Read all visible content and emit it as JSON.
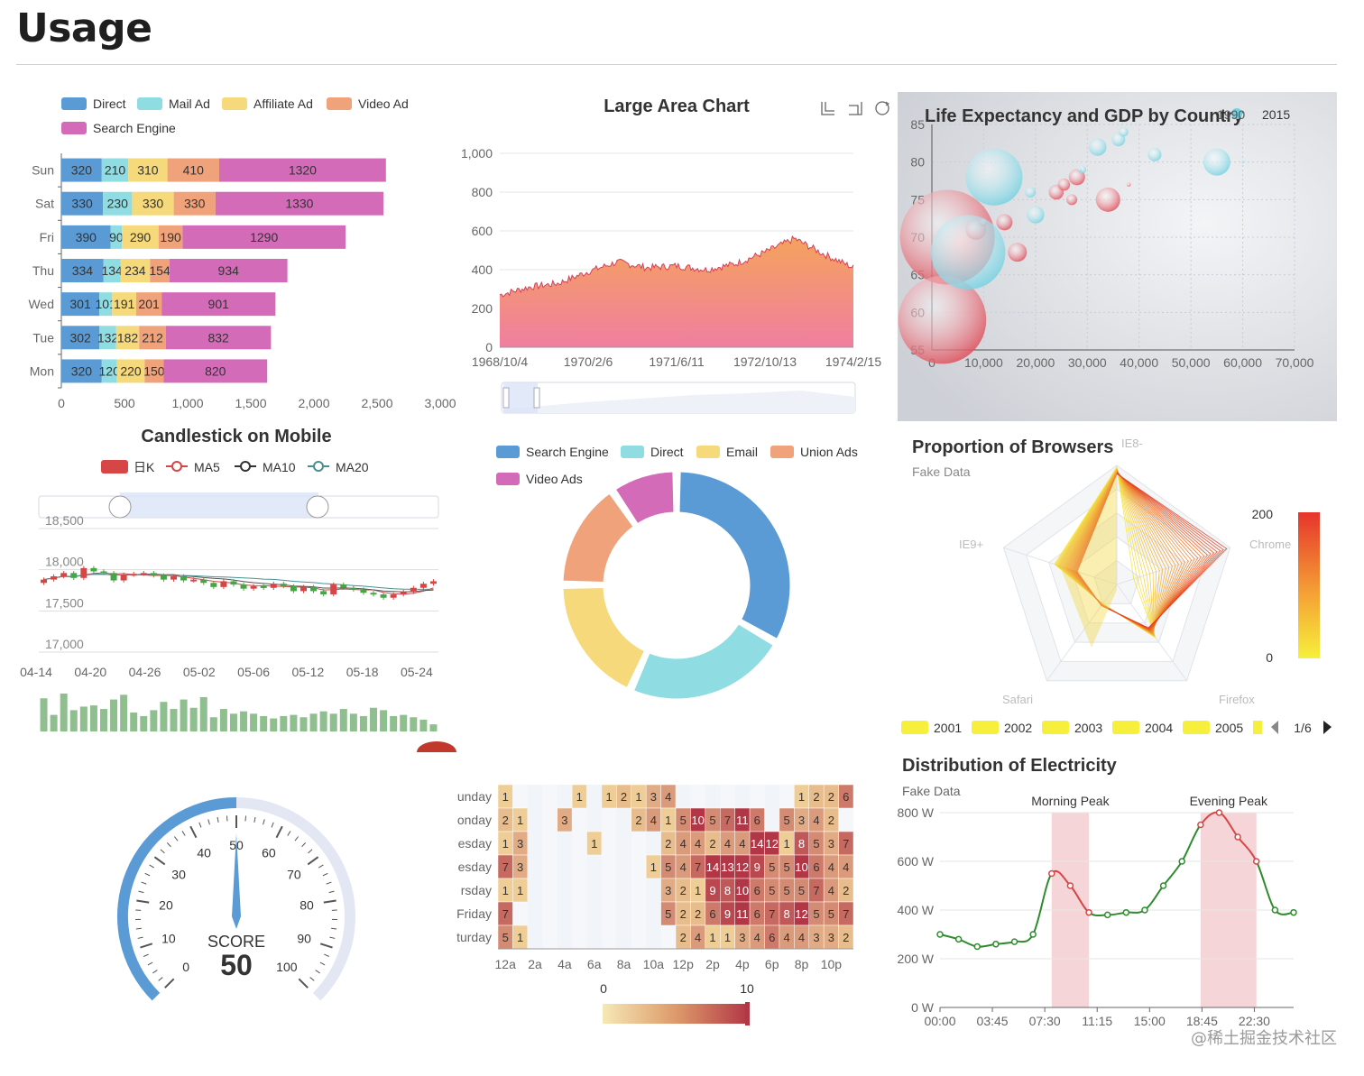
{
  "page": {
    "title": "Usage",
    "watermark": "@稀土掘金技术社区"
  },
  "chart_data": [
    {
      "id": "stacked-bar",
      "type": "bar",
      "orientation": "horizontal",
      "stacked": true,
      "title": "",
      "legend_position": "top-left",
      "categories": [
        "Mon",
        "Tue",
        "Wed",
        "Thu",
        "Fri",
        "Sat",
        "Sun"
      ],
      "series": [
        {
          "name": "Direct",
          "color": "#5b9bd5",
          "values": [
            320,
            302,
            301,
            334,
            390,
            330,
            320
          ]
        },
        {
          "name": "Mail Ad",
          "color": "#8fdde2",
          "values": [
            120,
            132,
            101,
            134,
            90,
            230,
            210
          ]
        },
        {
          "name": "Affiliate Ad",
          "color": "#f5d97b",
          "values": [
            220,
            182,
            191,
            234,
            290,
            330,
            310
          ]
        },
        {
          "name": "Video Ad",
          "color": "#f0a27a",
          "values": [
            150,
            212,
            201,
            154,
            190,
            330,
            410
          ]
        },
        {
          "name": "Search Engine",
          "color": "#d36bb8",
          "values": [
            820,
            832,
            901,
            934,
            1290,
            1330,
            1320
          ]
        }
      ],
      "xlim": [
        0,
        3000
      ],
      "xticks": [
        "0",
        "500",
        "1,000",
        "1,500",
        "2,000",
        "2,500",
        "3,000"
      ]
    },
    {
      "id": "large-area",
      "type": "area",
      "title": "Large Area Chart",
      "toolbox_icons": [
        "zoom-icon",
        "zoom-reset-icon",
        "restore-icon"
      ],
      "ylim": [
        0,
        1000
      ],
      "yticks": [
        "0",
        "200",
        "400",
        "600",
        "800",
        "1,000"
      ],
      "xticks": [
        "1968/10/4",
        "1970/2/6",
        "1971/6/11",
        "1972/10/13",
        "1974/2/15"
      ],
      "x": [
        "1968/10/4",
        "1969/3/1",
        "1969/8/1",
        "1970/2/6",
        "1970/7/1",
        "1971/1/1",
        "1971/6/11",
        "1971/12/1",
        "1972/5/1",
        "1972/10/13",
        "1973/3/1",
        "1973/8/1",
        "1974/2/15"
      ],
      "y": [
        270,
        310,
        330,
        390,
        440,
        410,
        420,
        400,
        430,
        490,
        560,
        480,
        410
      ],
      "fill_top": "#f5a35c",
      "fill_bottom": "#f07ea0",
      "line_color": "#d4405a"
    },
    {
      "id": "bubble",
      "type": "scatter",
      "title": "Life Expectancy and GDP by Country",
      "legend": [
        "1990",
        "2015"
      ],
      "xlim": [
        0,
        70000
      ],
      "ylim": [
        55,
        85
      ],
      "xticks": [
        "0",
        "10,000",
        "20,000",
        "30,000",
        "40,000",
        "50,000",
        "60,000",
        "70,000"
      ],
      "yticks": [
        "55",
        "60",
        "65",
        "70",
        "75",
        "80",
        "85"
      ],
      "series": [
        {
          "name": "1990",
          "color": "#dd4b57",
          "points": [
            [
              3000,
              70,
              70
            ],
            [
              2000,
              59,
              65
            ],
            [
              8500,
              71,
              15
            ],
            [
              14000,
              72,
              12
            ],
            [
              16500,
              68,
              14
            ],
            [
              24000,
              76,
              11
            ],
            [
              25500,
              77,
              9
            ],
            [
              27000,
              75,
              8
            ],
            [
              28000,
              78,
              12
            ],
            [
              34000,
              75,
              18
            ],
            [
              10000,
              72,
              6
            ],
            [
              38000,
              77,
              3
            ]
          ]
        },
        {
          "name": "2015",
          "color": "#74d0e0",
          "points": [
            [
              7000,
              68,
              55
            ],
            [
              12000,
              78,
              42
            ],
            [
              32000,
              82,
              13
            ],
            [
              36000,
              83,
              10
            ],
            [
              37000,
              84,
              7
            ],
            [
              20000,
              73,
              13
            ],
            [
              19000,
              76,
              8
            ],
            [
              29000,
              79,
              6
            ],
            [
              43000,
              81,
              10
            ],
            [
              55000,
              80,
              20
            ],
            [
              28500,
              79,
              3
            ],
            [
              60000,
              80,
              2
            ]
          ]
        }
      ]
    },
    {
      "id": "candlestick",
      "type": "line",
      "title": "Candlestick on Mobile",
      "legend": [
        "日K",
        "MA5",
        "MA10",
        "MA20"
      ],
      "ylim": [
        17000,
        18500
      ],
      "yticks": [
        "17,000",
        "17,500",
        "18,000",
        "18,500"
      ],
      "xticks": [
        "04-14",
        "04-20",
        "04-26",
        "05-02",
        "05-06",
        "05-12",
        "05-18",
        "05-24"
      ],
      "close": [
        17880,
        17920,
        17960,
        17900,
        18020,
        17980,
        17960,
        17870,
        17940,
        17950,
        17960,
        17930,
        17880,
        17920,
        17870,
        17880,
        17840,
        17790,
        17860,
        17820,
        17770,
        17800,
        17780,
        17830,
        17800,
        17740,
        17790,
        17740,
        17700,
        17820,
        17780,
        17760,
        17720,
        17700,
        17660,
        17700,
        17730,
        17780,
        17830,
        17860
      ],
      "volume": [
        28,
        14,
        32,
        18,
        21,
        22,
        19,
        27,
        31,
        16,
        13,
        18,
        25,
        19,
        27,
        20,
        29,
        12,
        19,
        15,
        17,
        15,
        13,
        11,
        13,
        14,
        12,
        15,
        17,
        15,
        19,
        15,
        13,
        20,
        18,
        13,
        14,
        12,
        10,
        6
      ],
      "up_color": "#d64646",
      "down_color": "#47a447"
    },
    {
      "id": "donut",
      "type": "pie",
      "title": "",
      "donut": true,
      "legend": [
        "Search Engine",
        "Direct",
        "Email",
        "Union Ads",
        "Video Ads"
      ],
      "slices": [
        {
          "name": "Search Engine",
          "value": 1048,
          "color": "#5b9bd5"
        },
        {
          "name": "Direct",
          "value": 735,
          "color": "#8fdde2"
        },
        {
          "name": "Email",
          "value": 580,
          "color": "#f5d97b"
        },
        {
          "name": "Union Ads",
          "value": 484,
          "color": "#f0a27a"
        },
        {
          "name": "Video Ads",
          "value": 300,
          "color": "#d36bb8"
        }
      ]
    },
    {
      "id": "radar",
      "type": "radar",
      "title": "Proportion of Browsers",
      "subtitle": "Fake Data",
      "indicators": [
        "IE8-",
        "Chrome",
        "Firefox",
        "Safari",
        "IE9+"
      ],
      "visual_map": {
        "max": "200",
        "min": "0"
      },
      "legend": [
        "2001",
        "2002",
        "2003",
        "2004",
        "2005"
      ],
      "legend_page": "1/6"
    },
    {
      "id": "gauge",
      "type": "gauge",
      "title": "",
      "label": "SCORE",
      "value": 50,
      "min": 0,
      "max": 100,
      "ticks": [
        "0",
        "10",
        "20",
        "30",
        "40",
        "50",
        "60",
        "70",
        "80",
        "90",
        "100"
      ],
      "color": "#5b9bd5",
      "track": "#e3e6f3"
    },
    {
      "id": "heatmap",
      "type": "heatmap",
      "title": "",
      "rows": [
        "unday",
        "onday",
        "esday",
        "esday",
        "rsday",
        "Friday",
        "turday"
      ],
      "xticks": [
        "12a",
        "2a",
        "4a",
        "6a",
        "8a",
        "10a",
        "12p",
        "2p",
        "4p",
        "6p",
        "8p",
        "10p"
      ],
      "hours": 24,
      "cells": [
        [
          0,
          0,
          1
        ],
        [
          0,
          5,
          1
        ],
        [
          0,
          7,
          1
        ],
        [
          0,
          8,
          2
        ],
        [
          0,
          9,
          1
        ],
        [
          0,
          10,
          3
        ],
        [
          0,
          11,
          4
        ],
        [
          0,
          20,
          1
        ],
        [
          0,
          21,
          2
        ],
        [
          0,
          22,
          2
        ],
        [
          0,
          23,
          6
        ],
        [
          1,
          0,
          2
        ],
        [
          1,
          1,
          1
        ],
        [
          1,
          4,
          3
        ],
        [
          1,
          9,
          2
        ],
        [
          1,
          10,
          4
        ],
        [
          1,
          11,
          1
        ],
        [
          1,
          12,
          5
        ],
        [
          1,
          13,
          10
        ],
        [
          1,
          14,
          5
        ],
        [
          1,
          15,
          7
        ],
        [
          1,
          16,
          11
        ],
        [
          1,
          17,
          6
        ],
        [
          1,
          19,
          5
        ],
        [
          1,
          20,
          3
        ],
        [
          1,
          21,
          4
        ],
        [
          1,
          22,
          2
        ],
        [
          2,
          0,
          1
        ],
        [
          2,
          1,
          3
        ],
        [
          2,
          6,
          1
        ],
        [
          2,
          11,
          2
        ],
        [
          2,
          12,
          4
        ],
        [
          2,
          13,
          4
        ],
        [
          2,
          14,
          2
        ],
        [
          2,
          15,
          4
        ],
        [
          2,
          16,
          4
        ],
        [
          2,
          17,
          14
        ],
        [
          2,
          18,
          12
        ],
        [
          2,
          19,
          1
        ],
        [
          2,
          20,
          8
        ],
        [
          2,
          21,
          5
        ],
        [
          2,
          22,
          3
        ],
        [
          2,
          23,
          7
        ],
        [
          2,
          24,
          3
        ],
        [
          3,
          0,
          7
        ],
        [
          3,
          1,
          3
        ],
        [
          3,
          10,
          1
        ],
        [
          3,
          11,
          5
        ],
        [
          3,
          12,
          4
        ],
        [
          3,
          13,
          7
        ],
        [
          3,
          14,
          14
        ],
        [
          3,
          15,
          13
        ],
        [
          3,
          16,
          12
        ],
        [
          3,
          17,
          9
        ],
        [
          3,
          18,
          5
        ],
        [
          3,
          19,
          5
        ],
        [
          3,
          20,
          10
        ],
        [
          3,
          21,
          6
        ],
        [
          3,
          22,
          4
        ],
        [
          3,
          23,
          4
        ],
        [
          3,
          24,
          1
        ],
        [
          4,
          0,
          1
        ],
        [
          4,
          1,
          1
        ],
        [
          4,
          11,
          3
        ],
        [
          4,
          12,
          2
        ],
        [
          4,
          13,
          1
        ],
        [
          4,
          14,
          9
        ],
        [
          4,
          15,
          8
        ],
        [
          4,
          16,
          10
        ],
        [
          4,
          17,
          6
        ],
        [
          4,
          18,
          5
        ],
        [
          4,
          19,
          5
        ],
        [
          4,
          20,
          5
        ],
        [
          4,
          21,
          7
        ],
        [
          4,
          22,
          4
        ],
        [
          4,
          23,
          2
        ],
        [
          4,
          24,
          4
        ],
        [
          5,
          0,
          7
        ],
        [
          5,
          11,
          5
        ],
        [
          5,
          12,
          2
        ],
        [
          5,
          13,
          2
        ],
        [
          5,
          14,
          6
        ],
        [
          5,
          15,
          9
        ],
        [
          5,
          16,
          11
        ],
        [
          5,
          17,
          6
        ],
        [
          5,
          18,
          7
        ],
        [
          5,
          19,
          8
        ],
        [
          5,
          20,
          12
        ],
        [
          5,
          21,
          5
        ],
        [
          5,
          22,
          5
        ],
        [
          5,
          23,
          7
        ],
        [
          5,
          24,
          2
        ],
        [
          6,
          0,
          5
        ],
        [
          6,
          1,
          1
        ],
        [
          6,
          12,
          2
        ],
        [
          6,
          13,
          4
        ],
        [
          6,
          14,
          1
        ],
        [
          6,
          15,
          1
        ],
        [
          6,
          16,
          3
        ],
        [
          6,
          17,
          4
        ],
        [
          6,
          18,
          6
        ],
        [
          6,
          19,
          4
        ],
        [
          6,
          20,
          4
        ],
        [
          6,
          21,
          3
        ],
        [
          6,
          22,
          3
        ],
        [
          6,
          23,
          2
        ],
        [
          6,
          24,
          5
        ]
      ],
      "visual_map": {
        "min": "0",
        "max": "10"
      }
    },
    {
      "id": "electricity",
      "type": "line",
      "title": "Distribution of Electricity",
      "subtitle": "Fake Data",
      "mark_areas": [
        "Morning Peak",
        "Evening Peak"
      ],
      "ylim": [
        0,
        800
      ],
      "yticks": [
        "0 W",
        "200 W",
        "400 W",
        "600 W",
        "800 W"
      ],
      "xticks": [
        "00:00",
        "03:45",
        "07:30",
        "11:15",
        "15:00",
        "18:45",
        "22:30"
      ],
      "x": [
        "00:00",
        "01:15",
        "02:30",
        "03:45",
        "05:00",
        "06:15",
        "07:30",
        "08:45",
        "10:00",
        "11:15",
        "12:30",
        "13:45",
        "15:00",
        "16:15",
        "17:30",
        "18:45",
        "20:00",
        "21:15",
        "22:30",
        "23:45"
      ],
      "y": [
        300,
        280,
        250,
        260,
        270,
        300,
        550,
        500,
        390,
        380,
        390,
        400,
        500,
        600,
        750,
        800,
        700,
        600,
        400,
        390
      ],
      "line_color": "#2e8b2e",
      "peak_color": "#d64646"
    }
  ]
}
